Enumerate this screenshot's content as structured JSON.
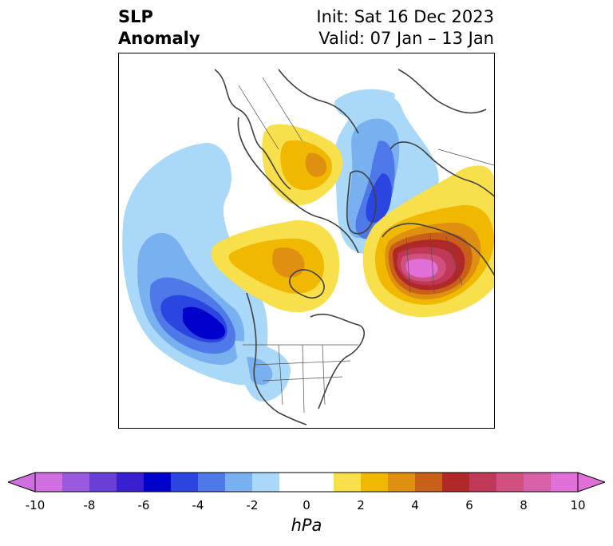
{
  "title": {
    "left_line1": "SLP",
    "left_line2": "Anomaly",
    "right_line1": "Init: Sat 16 Dec 2023",
    "right_line2": "Valid: 07 Jan – 13 Jan"
  },
  "colorbar": {
    "unit": "hPa",
    "ticks": [
      "-10",
      "-8",
      "-6",
      "-4",
      "-2",
      "0",
      "2",
      "4",
      "6",
      "8",
      "10"
    ],
    "min": -10,
    "max": 10,
    "levels": [
      {
        "from": -10,
        "to": -9,
        "color": "#d070e0"
      },
      {
        "from": -9,
        "to": -8,
        "color": "#9b59e0"
      },
      {
        "from": -8,
        "to": -7,
        "color": "#6a3fd8"
      },
      {
        "from": -7,
        "to": -6,
        "color": "#3a1fd0"
      },
      {
        "from": -6,
        "to": -5,
        "color": "#0000cc"
      },
      {
        "from": -5,
        "to": -4,
        "color": "#2a45e0"
      },
      {
        "from": -4,
        "to": -3,
        "color": "#4f78e8"
      },
      {
        "from": -3,
        "to": -2,
        "color": "#78b0f0"
      },
      {
        "from": -2,
        "to": -1,
        "color": "#aad8f8"
      },
      {
        "from": -1,
        "to": 1,
        "color": "#ffffff"
      },
      {
        "from": 1,
        "to": 2,
        "color": "#f8e04c"
      },
      {
        "from": 2,
        "to": 3,
        "color": "#f0b800"
      },
      {
        "from": 3,
        "to": 4,
        "color": "#e09010"
      },
      {
        "from": 4,
        "to": 5,
        "color": "#c86018"
      },
      {
        "from": 5,
        "to": 6,
        "color": "#b02828"
      },
      {
        "from": 6,
        "to": 7,
        "color": "#c03858"
      },
      {
        "from": 7,
        "to": 8,
        "color": "#d05080"
      },
      {
        "from": 8,
        "to": 9,
        "color": "#d860a8"
      },
      {
        "from": 9,
        "to": 10,
        "color": "#e070d8"
      }
    ],
    "extend_low_color": "#d070e0",
    "extend_high_color": "#e070d8"
  }
}
